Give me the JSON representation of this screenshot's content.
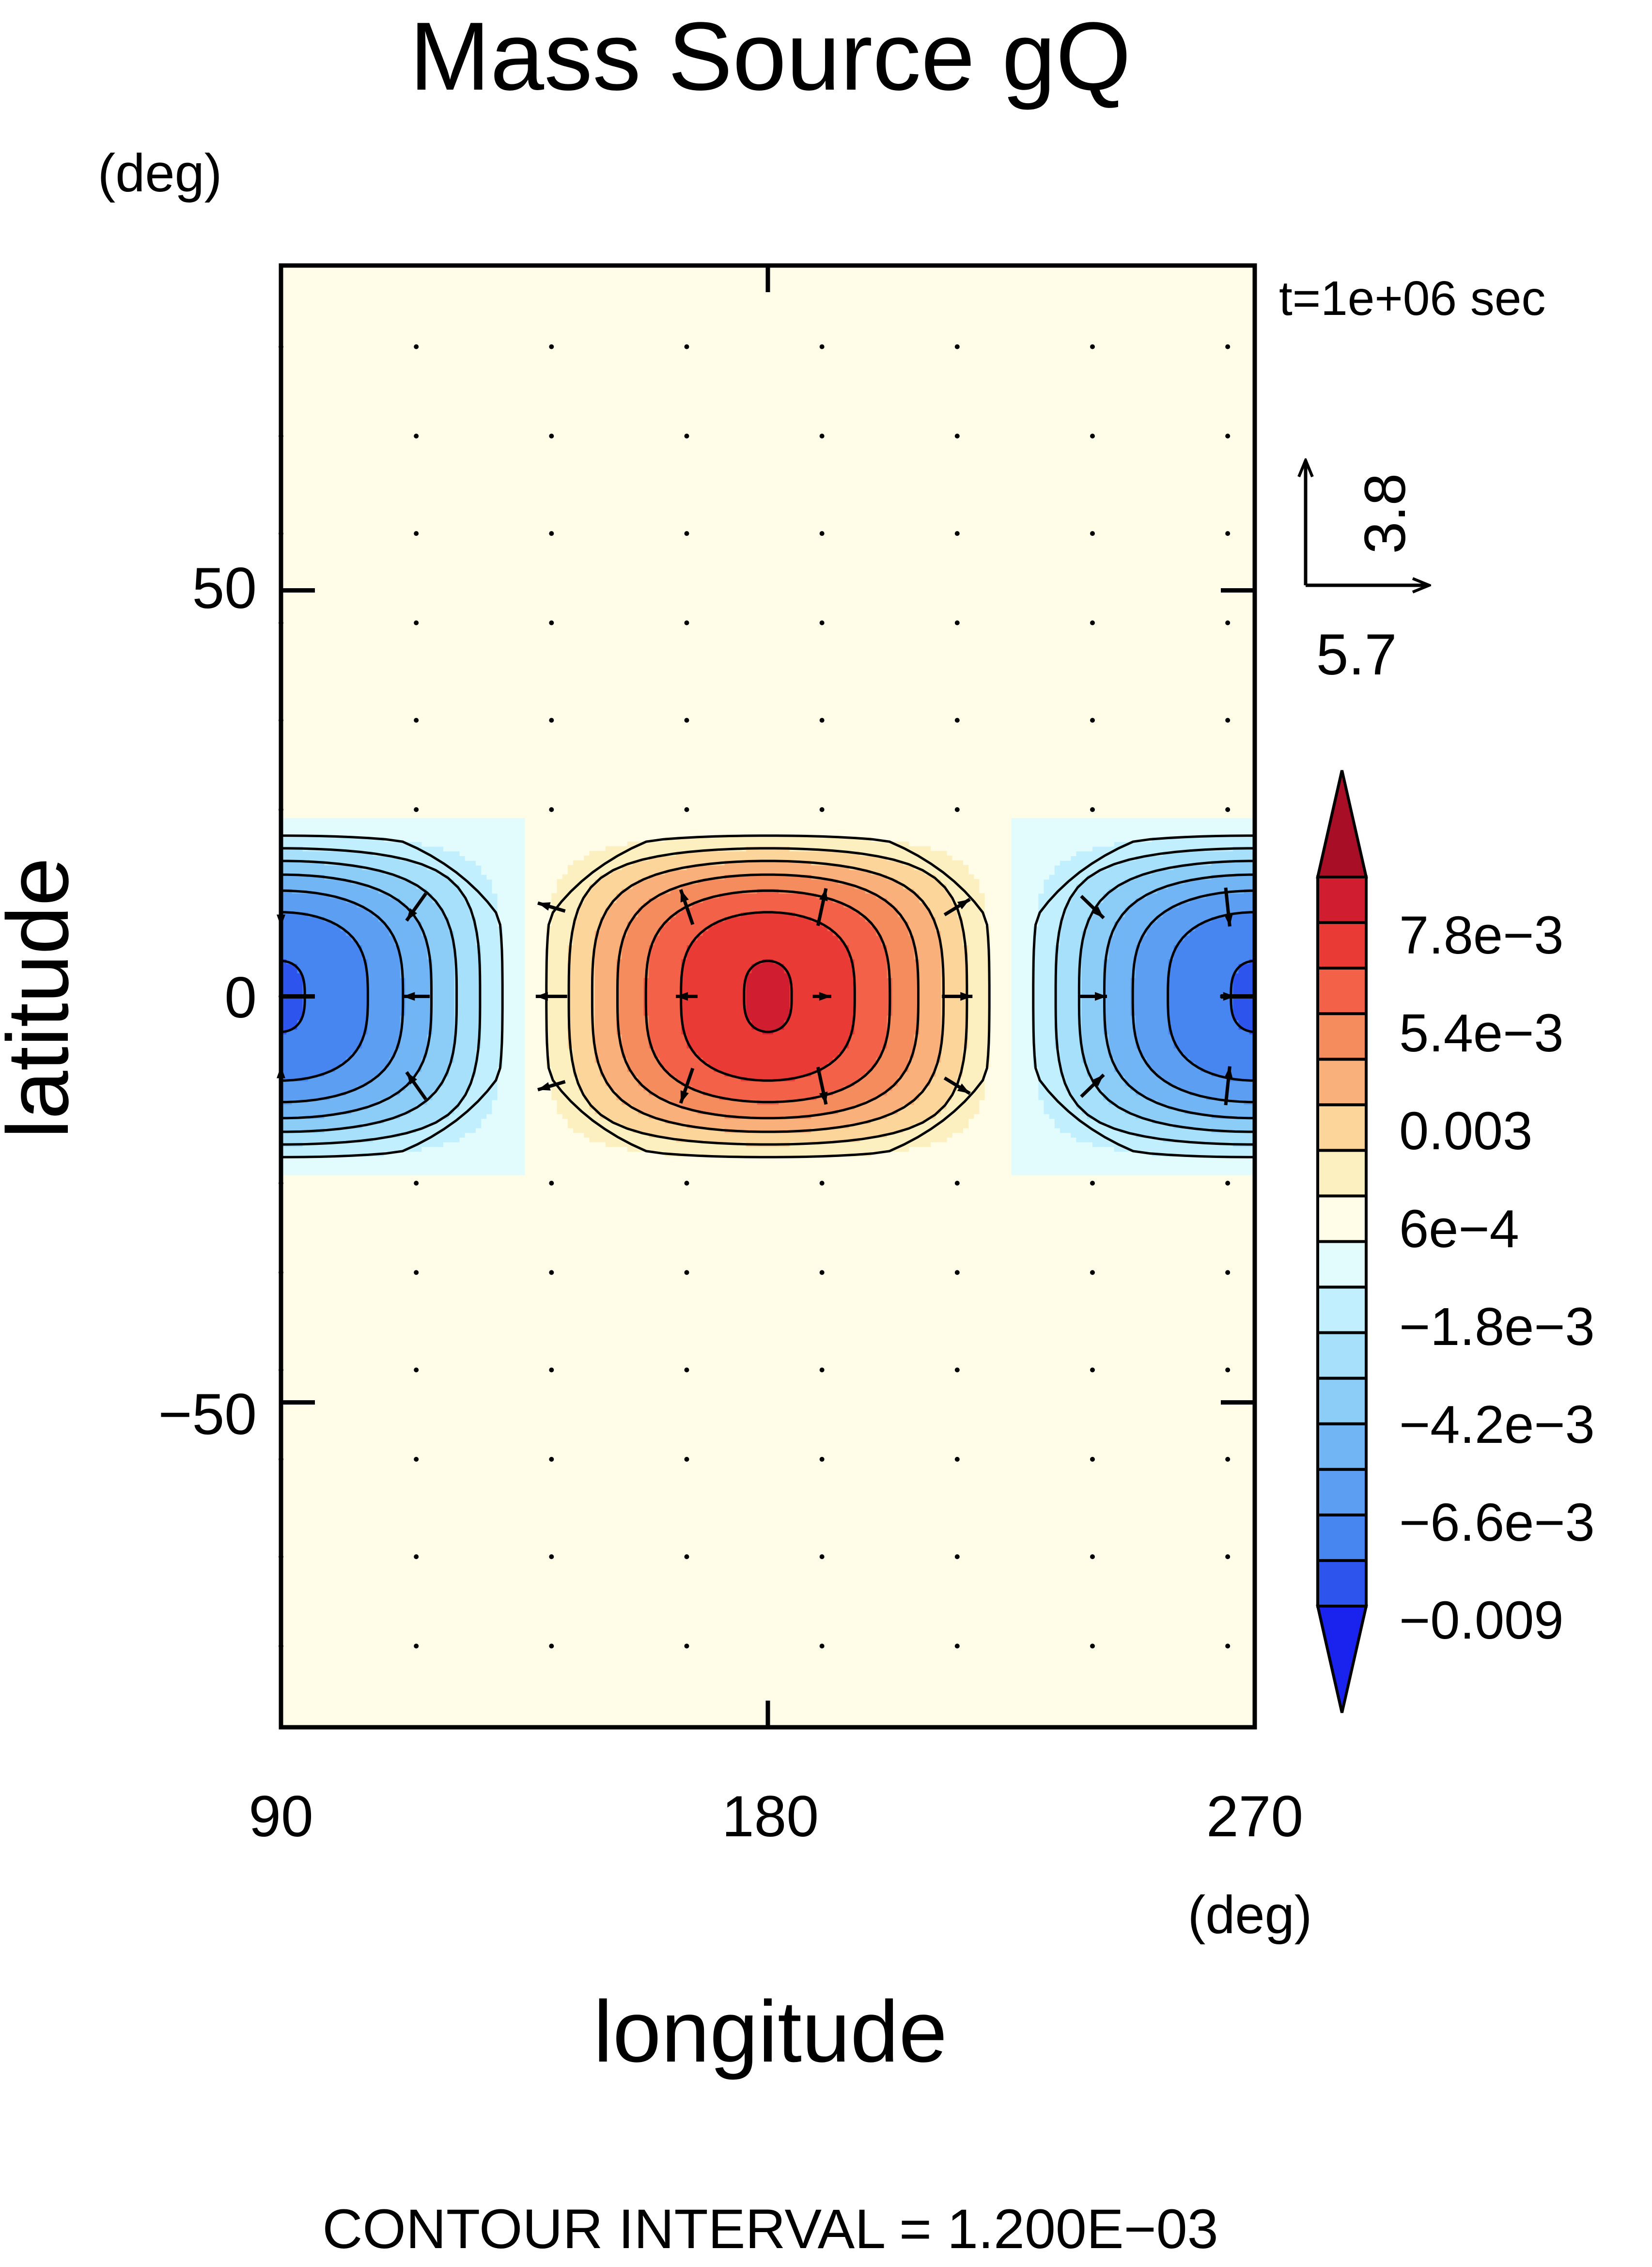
{
  "chart_data": {
    "type": "heatmap",
    "title": "Mass Source gQ",
    "time_label": "t=1e+06 sec",
    "xlabel": "longitude",
    "ylabel": "latitude",
    "x_unit": "(deg)",
    "y_unit": "(deg)",
    "xlim": [
      90,
      270
    ],
    "ylim": [
      -90,
      90
    ],
    "x_ticks": [
      "90",
      "180",
      "270"
    ],
    "y_ticks": [
      "50",
      "0",
      "−50"
    ],
    "footer": "CONTOUR INTERVAL = 1.200E−03",
    "contour_interval": 0.0012,
    "field": {
      "description": "mass source field, positive lobe centered at 180 deg, negative lobes at 90 and 270 deg, confined to about -22..22 deg latitude",
      "amplitude": 0.0085,
      "zonal_wavenumber": 2,
      "lat_extent": 22,
      "max_location": [
        180,
        0
      ],
      "min_locations": [
        [
          90,
          0
        ],
        [
          270,
          0
        ]
      ]
    },
    "colorbar": {
      "labels": [
        "7.8e−3",
        "5.4e−3",
        "0.003",
        "6e−4",
        "−1.8e−3",
        "−4.2e−3",
        "−6.6e−3",
        "−0.009"
      ],
      "levels": [
        -0.0096,
        -0.0084,
        -0.0072,
        -0.006,
        -0.0048,
        -0.0036,
        -0.0024,
        -0.0012,
        0.0,
        0.0012,
        0.0024,
        0.0036,
        0.0048,
        0.006,
        0.0072,
        0.0084
      ],
      "colors": [
        "#1a22ee",
        "#2d55ee",
        "#4785f0",
        "#5c9ff2",
        "#72b5f5",
        "#8ccdf8",
        "#a6e0fb",
        "#c2effd",
        "#e2fbfd",
        "#fffde8",
        "#fdf0c0",
        "#fcd59a",
        "#f9b07a",
        "#f58c5e",
        "#f26148",
        "#ea3a36",
        "#d01e30",
        "#a80e25"
      ]
    },
    "vector_scale": {
      "x_label": "5.7",
      "y_label": "3.8"
    },
    "vector_grid": {
      "lons": [
        90,
        115,
        140,
        165,
        190,
        215,
        240,
        265
      ],
      "lats": [
        80,
        69,
        57,
        46,
        34,
        23,
        11,
        0,
        -11,
        -23,
        -34,
        -46,
        -57,
        -69,
        -80
      ]
    },
    "colors": {
      "background": "#fffde8",
      "axis": "#000000",
      "vector": "#000000"
    }
  }
}
